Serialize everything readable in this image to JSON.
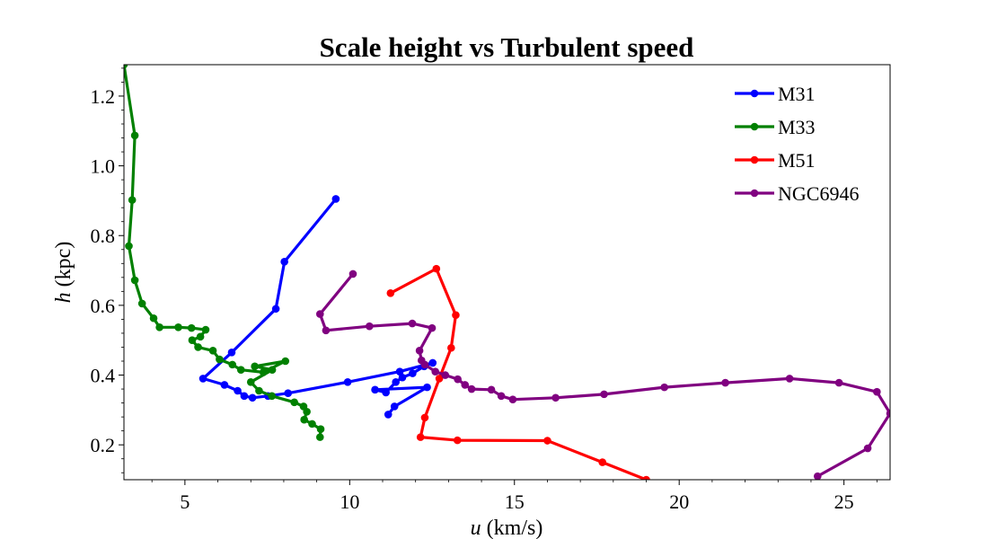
{
  "chart_data": {
    "type": "line",
    "title": "Scale height vs Turbulent speed",
    "xlabel_var": "u",
    "xlabel_unit": "(km/s)",
    "ylabel_var": "h",
    "ylabel_unit": "(kpc)",
    "xlim": [
      3.15,
      26.4
    ],
    "ylim": [
      0.1,
      1.29
    ],
    "x_ticks": [
      5,
      10,
      15,
      20,
      25
    ],
    "y_ticks": [
      0.2,
      0.4,
      0.6,
      0.8,
      1.0,
      1.2
    ],
    "legend_position": "top-right",
    "grid": false,
    "series": [
      {
        "name": "M31",
        "color": "#0000ff",
        "points": [
          [
            9.58,
            0.905
          ],
          [
            8.02,
            0.725
          ],
          [
            7.76,
            0.59
          ],
          [
            6.42,
            0.465
          ],
          [
            5.55,
            0.39
          ],
          [
            6.2,
            0.372
          ],
          [
            6.6,
            0.355
          ],
          [
            6.8,
            0.34
          ],
          [
            7.05,
            0.335
          ],
          [
            7.52,
            0.34
          ],
          [
            8.13,
            0.348
          ],
          [
            9.94,
            0.38
          ],
          [
            11.52,
            0.41
          ],
          [
            12.52,
            0.435
          ],
          [
            12.26,
            0.425
          ],
          [
            11.91,
            0.405
          ],
          [
            11.6,
            0.393
          ],
          [
            11.4,
            0.38
          ],
          [
            11.1,
            0.35
          ],
          [
            10.77,
            0.358
          ],
          [
            12.35,
            0.365
          ],
          [
            11.36,
            0.31
          ],
          [
            11.17,
            0.287
          ]
        ]
      },
      {
        "name": "M33",
        "color": "#008000",
        "points": [
          [
            3.15,
            1.29
          ],
          [
            3.48,
            1.087
          ],
          [
            3.4,
            0.902
          ],
          [
            3.3,
            0.77
          ],
          [
            3.48,
            0.672
          ],
          [
            3.7,
            0.605
          ],
          [
            4.05,
            0.563
          ],
          [
            4.23,
            0.537
          ],
          [
            4.8,
            0.537
          ],
          [
            5.2,
            0.535
          ],
          [
            5.63,
            0.53
          ],
          [
            5.47,
            0.51
          ],
          [
            5.22,
            0.5
          ],
          [
            5.4,
            0.48
          ],
          [
            5.85,
            0.47
          ],
          [
            6.05,
            0.445
          ],
          [
            6.44,
            0.43
          ],
          [
            6.7,
            0.415
          ],
          [
            7.38,
            0.408
          ],
          [
            8.05,
            0.44
          ],
          [
            7.12,
            0.425
          ],
          [
            7.65,
            0.415
          ],
          [
            7.0,
            0.38
          ],
          [
            7.25,
            0.355
          ],
          [
            7.64,
            0.34
          ],
          [
            8.32,
            0.322
          ],
          [
            8.6,
            0.31
          ],
          [
            8.7,
            0.295
          ],
          [
            8.62,
            0.272
          ],
          [
            8.86,
            0.26
          ],
          [
            9.12,
            0.245
          ],
          [
            9.1,
            0.222
          ]
        ]
      },
      {
        "name": "M51",
        "color": "#ff0000",
        "points": [
          [
            11.24,
            0.635
          ],
          [
            12.63,
            0.705
          ],
          [
            13.22,
            0.572
          ],
          [
            13.08,
            0.478
          ],
          [
            12.72,
            0.39
          ],
          [
            12.28,
            0.278
          ],
          [
            12.15,
            0.222
          ],
          [
            13.27,
            0.213
          ],
          [
            16.0,
            0.212
          ],
          [
            17.67,
            0.15
          ],
          [
            19.0,
            0.1
          ]
        ]
      },
      {
        "name": "NGC6946",
        "color": "#800080",
        "points": [
          [
            10.1,
            0.69
          ],
          [
            9.1,
            0.575
          ],
          [
            9.28,
            0.528
          ],
          [
            10.6,
            0.54
          ],
          [
            11.9,
            0.548
          ],
          [
            12.5,
            0.535
          ],
          [
            12.12,
            0.47
          ],
          [
            12.18,
            0.442
          ],
          [
            12.28,
            0.43
          ],
          [
            12.6,
            0.41
          ],
          [
            12.9,
            0.4
          ],
          [
            13.28,
            0.388
          ],
          [
            13.5,
            0.372
          ],
          [
            13.7,
            0.36
          ],
          [
            14.3,
            0.358
          ],
          [
            14.6,
            0.34
          ],
          [
            14.95,
            0.33
          ],
          [
            16.25,
            0.335
          ],
          [
            17.72,
            0.345
          ],
          [
            19.55,
            0.365
          ],
          [
            21.4,
            0.378
          ],
          [
            23.35,
            0.39
          ],
          [
            24.85,
            0.378
          ],
          [
            26.0,
            0.352
          ],
          [
            26.4,
            0.29
          ],
          [
            25.72,
            0.19
          ],
          [
            24.2,
            0.11
          ]
        ]
      }
    ]
  }
}
